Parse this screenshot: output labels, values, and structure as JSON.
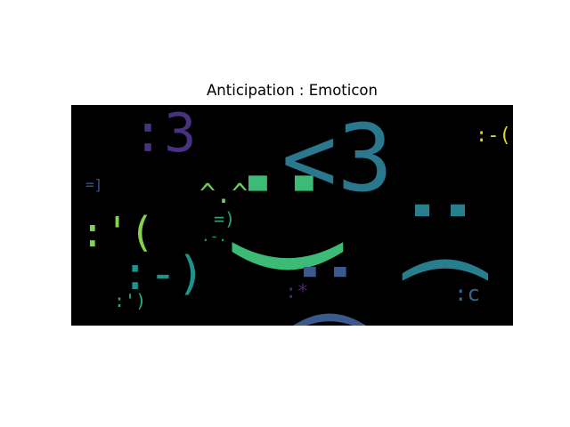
{
  "chart": {
    "title": "Anticipation : Emoticon",
    "background": "#000000"
  },
  "chart_data": {
    "type": "wordcloud",
    "title": "Anticipation : Emoticon",
    "words": [
      {
        "text": ":3",
        "color": "#46327e"
      },
      {
        "text": ":)",
        "color": "#3bbb75"
      },
      {
        "text": "<3",
        "color": "#2a788e"
      },
      {
        "text": ":(",
        "color": "#277f8e"
      },
      {
        "text": ":-(",
        "color": "#e3d71c"
      },
      {
        "text": "=]",
        "color": "#3a548c"
      },
      {
        "text": "^.^",
        "color": "#6ccd5a"
      },
      {
        "text": "=)",
        "color": "#2ea17f"
      },
      {
        "text": ":'(",
        "color": "#84d44b"
      },
      {
        "text": ":-)",
        "color": "#20928c"
      },
      {
        "text": ".-.",
        "color": "#1f9e89"
      },
      {
        "text": ":(",
        "color": "#3a5a8e"
      },
      {
        "text": ":*",
        "color": "#482475"
      },
      {
        "text": ":')",
        "color": "#25ab82"
      },
      {
        "text": ":c",
        "color": "#31688e"
      }
    ]
  }
}
